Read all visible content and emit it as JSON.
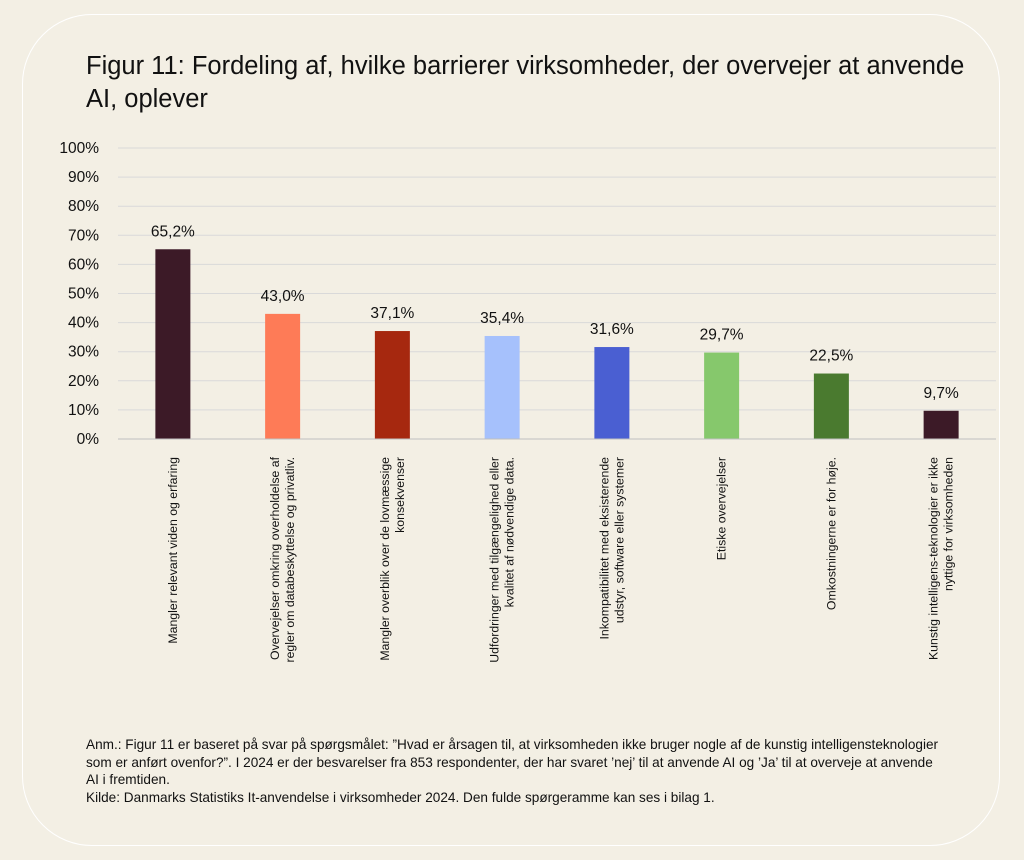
{
  "title": "Figur 11: Fordeling af, hvilke barrierer virksomheder, der overvejer at anvende AI, oplever",
  "chart_data": {
    "type": "bar",
    "ylim": [
      0,
      100
    ],
    "grid": true,
    "legend": "none",
    "y_ticks": [
      "0%",
      "10%",
      "20%",
      "30%",
      "40%",
      "50%",
      "60%",
      "70%",
      "80%",
      "90%",
      "100%"
    ],
    "categories": [
      "Mangler relevant viden og erfaring",
      "Overvejelser omkring overholdelse af regler om databeskyttelse og privatliv.",
      "Mangler overblik over de lovmæssige konsekvenser",
      "Udfordringer med tilgængelighed eller kvalitet af nødvendige data.",
      "Inkompatibilitet med eksisterende udstyr, software eller systemer",
      "Etiske overvejelser",
      "Omkostningerne er for høje.",
      "Kunstig intelligens-teknologier er ikke nyttige for virksomheden"
    ],
    "category_lines": [
      [
        "Mangler relevant viden og erfaring"
      ],
      [
        "Overvejelser omkring overholdelse af",
        "regler om databeskyttelse og privatliv."
      ],
      [
        "Mangler overblik over de lovmæssige",
        "konsekvenser"
      ],
      [
        "Udfordringer med tilgængelighed eller",
        "kvalitet af nødvendige data."
      ],
      [
        "Inkompatibilitet med eksisterende",
        "udstyr, software eller systemer"
      ],
      [
        "Etiske overvejelser"
      ],
      [
        "Omkostningerne er for høje."
      ],
      [
        "Kunstig intelligens-teknologier er ikke",
        "nyttige for virksomheden"
      ]
    ],
    "values": [
      65.2,
      43.0,
      37.1,
      35.4,
      31.6,
      29.7,
      22.5,
      9.7
    ],
    "value_labels": [
      "65,2%",
      "43,0%",
      "37,1%",
      "35,4%",
      "31,6%",
      "29,7%",
      "22,5%",
      "9,7%"
    ],
    "colors": [
      "#3c1a27",
      "#fe7b57",
      "#a6280f",
      "#a6c1fc",
      "#4a5fd2",
      "#86c86c",
      "#4a7a2f",
      "#3c1a27"
    ]
  },
  "notes": [
    "Anm.: Figur 11 er baseret på svar på spørgsmålet: ”Hvad er årsagen til, at virksomheden ikke bruger nogle af de kunstig intelligensteknologier som er anført ovenfor?”. I 2024 er der besvarelser fra 853 respondenter, der har svaret ’nej’ til at anvende AI og ’Ja’ til at overveje at anvende AI i fremtiden.",
    "Kilde: Danmarks Statistiks It-anvendelse i virksomheder 2024. Den fulde spørgeramme kan ses i bilag 1."
  ]
}
